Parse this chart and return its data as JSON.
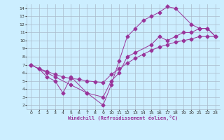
{
  "xlabel": "Windchill (Refroidissement éolien,°C)",
  "background_color": "#cceeff",
  "grid_color": "#aabbcc",
  "line_color": "#993399",
  "xlim": [
    -0.5,
    23.5
  ],
  "ylim": [
    1.5,
    14.5
  ],
  "xticks": [
    0,
    1,
    2,
    3,
    4,
    5,
    6,
    7,
    8,
    9,
    10,
    11,
    12,
    13,
    14,
    15,
    16,
    17,
    18,
    19,
    20,
    21,
    22,
    23
  ],
  "yticks": [
    2,
    3,
    4,
    5,
    6,
    7,
    8,
    9,
    10,
    11,
    12,
    13,
    14
  ],
  "line1_x": [
    0,
    1,
    2,
    3,
    4,
    5,
    6,
    7,
    8,
    9,
    10,
    11,
    12,
    13,
    14,
    15,
    16,
    17,
    18,
    19,
    20,
    21,
    22,
    23
  ],
  "line1_y": [
    7.0,
    6.5,
    6.2,
    5.8,
    5.5,
    5.3,
    5.2,
    5.0,
    4.9,
    4.8,
    5.8,
    6.5,
    7.2,
    7.8,
    8.3,
    8.8,
    9.2,
    9.5,
    9.8,
    10.0,
    10.2,
    10.5,
    10.5,
    10.5
  ],
  "line2_x": [
    0,
    2,
    3,
    5,
    7,
    9,
    10,
    11,
    12,
    13,
    14,
    15,
    16,
    17,
    18,
    20,
    21,
    22,
    23
  ],
  "line2_y": [
    7.0,
    6.0,
    5.5,
    4.5,
    3.5,
    2.0,
    4.5,
    7.5,
    10.5,
    11.5,
    12.5,
    13.0,
    13.5,
    14.2,
    14.0,
    12.0,
    11.5,
    11.5,
    10.5
  ],
  "line3_x": [
    0,
    1,
    2,
    3,
    4,
    5,
    7,
    9,
    10,
    11,
    12,
    13,
    15,
    16,
    17,
    18,
    19,
    20,
    21,
    22,
    23
  ],
  "line3_y": [
    7.0,
    6.5,
    5.5,
    5.0,
    3.5,
    5.5,
    3.5,
    3.0,
    5.0,
    6.0,
    8.0,
    8.5,
    9.5,
    10.5,
    10.0,
    10.5,
    11.0,
    11.0,
    11.5,
    11.5,
    10.5
  ],
  "marker": "D",
  "markersize": 2.5
}
